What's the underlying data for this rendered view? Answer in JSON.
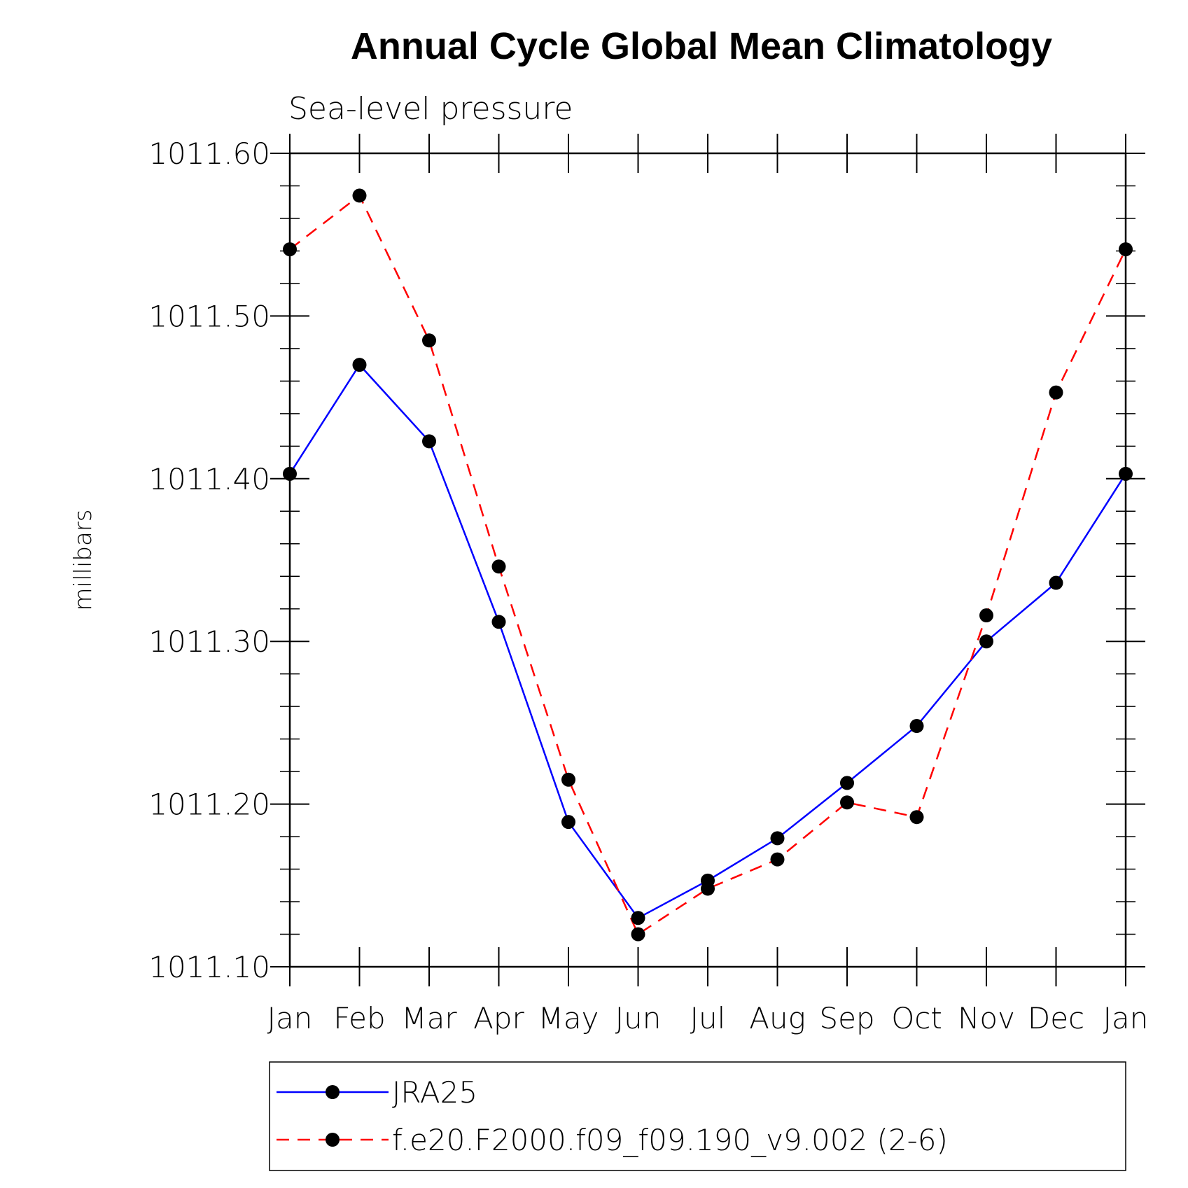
{
  "chart_data": {
    "type": "line",
    "title": "Annual Cycle Global Mean Climatology",
    "subtitle": "Sea-level pressure",
    "xlabel": "",
    "ylabel": "millibars",
    "categories": [
      "Jan",
      "Feb",
      "Mar",
      "Apr",
      "May",
      "Jun",
      "Jul",
      "Aug",
      "Sep",
      "Oct",
      "Nov",
      "Dec",
      "Jan"
    ],
    "ylim": [
      1011.1,
      1011.6
    ],
    "yticks": [
      "1011.10",
      "1011.20",
      "1011.30",
      "1011.40",
      "1011.50",
      "1011.60"
    ],
    "grid": false,
    "legend_position": "bottom",
    "series": [
      {
        "name": "JRA25",
        "color": "#0000ff",
        "line_style": "solid",
        "marker": "filled-circle",
        "values": [
          1011.403,
          1011.47,
          1011.423,
          1011.312,
          1011.189,
          1011.13,
          1011.153,
          1011.179,
          1011.213,
          1011.248,
          1011.3,
          1011.336,
          1011.403
        ]
      },
      {
        "name": "f.e20.F2000.f09_f09.190_v9.002 (2-6)",
        "color": "#ff0000",
        "line_style": "dashed",
        "marker": "filled-circle",
        "values": [
          1011.541,
          1011.574,
          1011.485,
          1011.346,
          1011.215,
          1011.12,
          1011.148,
          1011.166,
          1011.201,
          1011.192,
          1011.316,
          1011.453,
          1011.541
        ]
      }
    ]
  }
}
